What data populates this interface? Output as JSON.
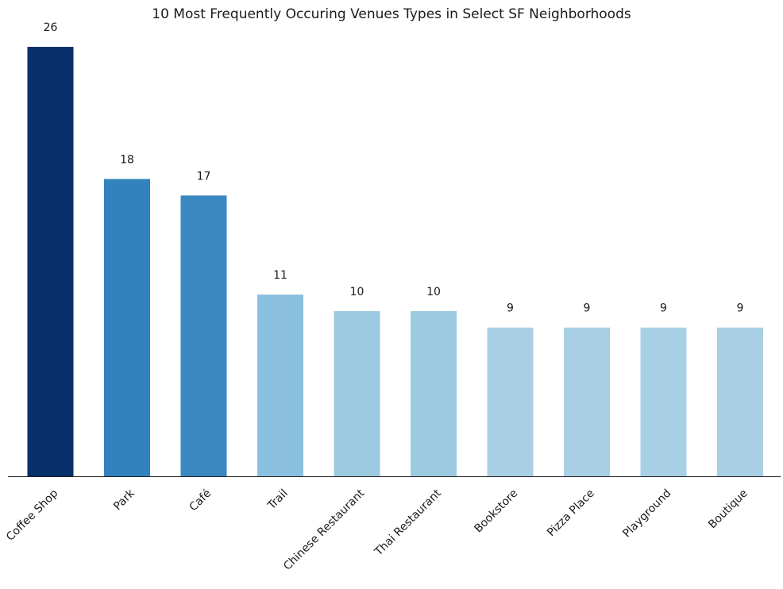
{
  "chart_data": {
    "type": "bar",
    "title": "10 Most Frequently Occuring Venues Types in Select SF Neighborhoods",
    "xlabel": "",
    "ylabel": "",
    "categories": [
      "Coffee Shop",
      "Park",
      "Café",
      "Trail",
      "Chinese Restaurant",
      "Thai Restaurant",
      "Bookstore",
      "Pizza Place",
      "Playground",
      "Boutique"
    ],
    "values": [
      26,
      18,
      17,
      11,
      10,
      10,
      9,
      9,
      9,
      9
    ],
    "bar_colors": [
      "#08306b",
      "#3182bd",
      "#3a88c0",
      "#8abfdf",
      "#9ccae1",
      "#9ccae1",
      "#a9cfe4",
      "#a9cfe4",
      "#a9cfe4",
      "#a9cfe4"
    ],
    "ylim": [
      0,
      26
    ],
    "grid": false,
    "legend": "none",
    "y_axis_visible": false,
    "value_labels": true,
    "tick_rotation_deg": -45
  }
}
